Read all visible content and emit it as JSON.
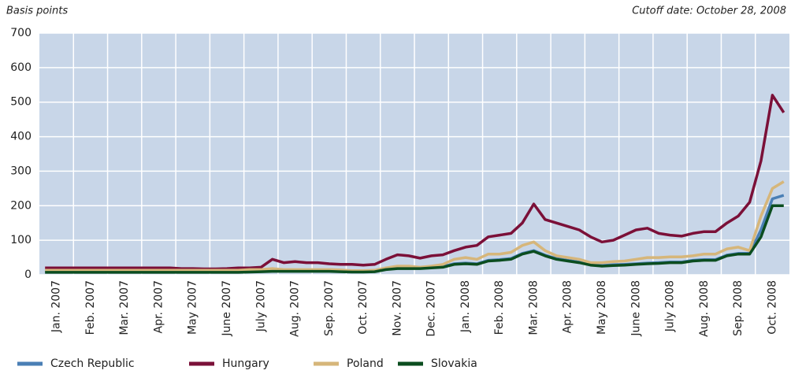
{
  "chart_data": {
    "type": "line",
    "y_label": "Basis points",
    "annotation": "Cutoff date: October 28, 2008",
    "categories": [
      null,
      "Jan. 2007",
      null,
      null,
      "Feb. 2007",
      null,
      null,
      "Mar. 2007",
      null,
      null,
      "Apr. 2007",
      null,
      null,
      "May 2007",
      null,
      null,
      "June 2007",
      null,
      null,
      "July 2007",
      null,
      null,
      "Aug. 2007",
      null,
      null,
      "Sep. 2007",
      null,
      null,
      "Oct. 2007",
      null,
      null,
      "Nov. 2007",
      null,
      null,
      "Dec. 2007",
      null,
      null,
      "Jan. 2008",
      null,
      null,
      "Feb. 2008",
      null,
      null,
      "Mar. 2008",
      null,
      null,
      "Apr. 2008",
      null,
      null,
      "May 2008",
      null,
      null,
      "June 2008",
      null,
      null,
      "July 2008",
      null,
      null,
      "Aug. 2008",
      null,
      null,
      "Sep. 2008",
      null,
      null,
      "Oct. 2008",
      null
    ],
    "series": [
      {
        "name": "Czech Republic",
        "color": "#4a7fb5",
        "values": [
          9,
          9,
          9,
          9,
          9,
          9,
          9,
          9,
          9,
          9,
          9,
          9,
          9,
          9,
          9,
          9,
          9,
          9,
          10,
          11,
          12,
          12,
          12,
          12,
          12,
          12,
          11,
          10,
          10,
          11,
          17,
          20,
          20,
          20,
          22,
          24,
          32,
          34,
          32,
          42,
          44,
          47,
          62,
          70,
          57,
          47,
          42,
          37,
          30,
          27,
          29,
          30,
          32,
          34,
          35,
          37,
          37,
          42,
          44,
          44,
          57,
          62,
          62,
          130,
          220,
          230
        ]
      },
      {
        "name": "Hungary",
        "color": "#7b1038",
        "values": [
          20,
          20,
          20,
          20,
          20,
          20,
          20,
          20,
          20,
          20,
          20,
          20,
          18,
          18,
          17,
          17,
          18,
          20,
          20,
          22,
          45,
          35,
          38,
          35,
          35,
          32,
          30,
          30,
          28,
          30,
          45,
          58,
          55,
          48,
          55,
          58,
          70,
          80,
          85,
          110,
          115,
          120,
          150,
          205,
          160,
          150,
          140,
          130,
          110,
          95,
          100,
          115,
          130,
          135,
          120,
          115,
          112,
          120,
          125,
          125,
          150,
          170,
          210,
          330,
          520,
          470
        ]
      },
      {
        "name": "Poland",
        "color": "#d6b67a",
        "values": [
          13,
          13,
          13,
          13,
          13,
          13,
          13,
          13,
          13,
          13,
          13,
          13,
          13,
          13,
          13,
          13,
          13,
          13,
          15,
          15,
          18,
          15,
          15,
          15,
          15,
          15,
          14,
          12,
          12,
          13,
          20,
          25,
          25,
          22,
          25,
          30,
          45,
          50,
          45,
          60,
          60,
          65,
          85,
          95,
          70,
          55,
          50,
          45,
          35,
          35,
          38,
          40,
          45,
          50,
          50,
          52,
          52,
          55,
          60,
          60,
          75,
          80,
          70,
          170,
          250,
          270
        ]
      },
      {
        "name": "Slovakia",
        "color": "#0b4d1f",
        "values": [
          7,
          7,
          7,
          7,
          7,
          7,
          7,
          7,
          7,
          7,
          7,
          7,
          7,
          7,
          7,
          7,
          7,
          7,
          8,
          9,
          10,
          10,
          10,
          10,
          10,
          10,
          9,
          8,
          8,
          9,
          15,
          18,
          18,
          18,
          20,
          22,
          30,
          32,
          30,
          40,
          42,
          45,
          60,
          68,
          55,
          45,
          40,
          35,
          28,
          25,
          27,
          28,
          30,
          32,
          33,
          35,
          35,
          40,
          42,
          42,
          55,
          60,
          60,
          110,
          200,
          200
        ]
      }
    ],
    "ylim": [
      0,
      700
    ],
    "yticks": [
      0,
      100,
      200,
      300,
      400,
      500,
      600,
      700
    ],
    "grid": true,
    "legend": "bottom"
  }
}
